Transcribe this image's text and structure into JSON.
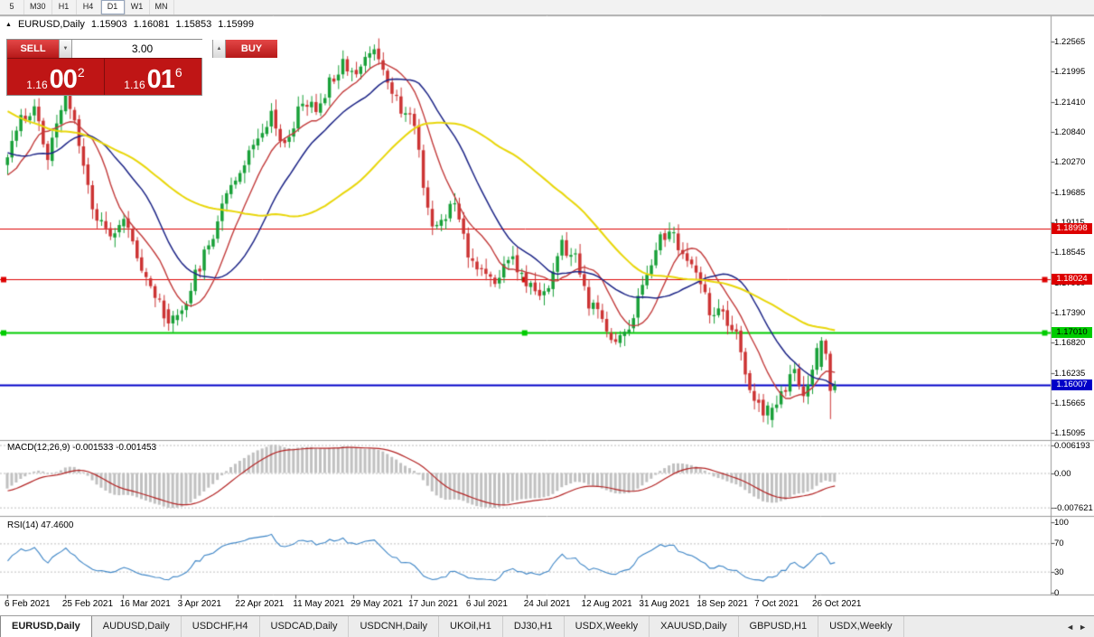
{
  "toolbar": {
    "timeframes": [
      {
        "label": "5",
        "active": false
      },
      {
        "label": "M30",
        "active": false
      },
      {
        "label": "H1",
        "active": false
      },
      {
        "label": "H4",
        "active": false
      },
      {
        "label": "D1",
        "active": true
      },
      {
        "label": "W1",
        "active": false
      },
      {
        "label": "MN",
        "active": false
      }
    ]
  },
  "chart": {
    "symbol_period": "EURUSD,Daily",
    "ohlc": {
      "open": "1.15903",
      "high": "1.16081",
      "low": "1.15853",
      "close": "1.15999"
    }
  },
  "trade_panel": {
    "sell_label": "SELL",
    "buy_label": "BUY",
    "volume": "3.00",
    "sell_price": {
      "big_prefix": "1.16",
      "big": "00",
      "sup": "2"
    },
    "buy_price": {
      "big_prefix": "1.16",
      "big": "01",
      "sup": "6"
    }
  },
  "price_axis": {
    "labels": [
      "1.22565",
      "1.21995",
      "1.21410",
      "1.20840",
      "1.20270",
      "1.19685",
      "1.19115",
      "1.18545",
      "1.17960",
      "1.17390",
      "1.16820",
      "1.16235",
      "1.15665",
      "1.15095"
    ]
  },
  "hlines": [
    {
      "price": 1.18998,
      "label": "1.18998",
      "color": "#dd0000",
      "text": "#ffffff",
      "width": 1,
      "selected": false
    },
    {
      "price": 1.18024,
      "label": "1.18024",
      "color": "#dd0000",
      "text": "#ffffff",
      "width": 1,
      "selected": true
    },
    {
      "price": 1.1701,
      "label": "1.17010",
      "color": "#00cc00",
      "text": "#000000",
      "width": 2,
      "selected": true
    },
    {
      "price": 1.16007,
      "label": "1.16007",
      "color": "#0000c8",
      "text": "#ffffff",
      "width": 2,
      "selected": false
    }
  ],
  "macd": {
    "label": "MACD(12,26,9) -0.001533 -0.001453",
    "axis": [
      "0.006193",
      "0.00",
      "-0.007621"
    ],
    "params": {
      "fast": 12,
      "slow": 26,
      "signal": 9
    }
  },
  "rsi": {
    "label": "RSI(14) 47.4600",
    "axis": [
      "100",
      "70",
      "30",
      "0"
    ],
    "period": 14
  },
  "date_axis": [
    "6 Feb 2021",
    "25 Feb 2021",
    "16 Mar 2021",
    "3 Apr 2021",
    "22 Apr 2021",
    "11 May 2021",
    "29 May 2021",
    "17 Jun 2021",
    "6 Jul 2021",
    "24 Jul 2021",
    "12 Aug 2021",
    "31 Aug 2021",
    "18 Sep 2021",
    "7 Oct 2021",
    "26 Oct 2021"
  ],
  "tabs": [
    {
      "label": "EURUSD,Daily",
      "active": true
    },
    {
      "label": "AUDUSD,Daily",
      "active": false
    },
    {
      "label": "USDCHF,H4",
      "active": false
    },
    {
      "label": "USDCAD,Daily",
      "active": false
    },
    {
      "label": "USDCNH,Daily",
      "active": false
    },
    {
      "label": "UKOil,H1",
      "active": false
    },
    {
      "label": "DJ30,H1",
      "active": false
    },
    {
      "label": "USDX,Weekly",
      "active": false
    },
    {
      "label": "XAUUSD,Daily",
      "active": false
    },
    {
      "label": "GBPUSD,H1",
      "active": false
    },
    {
      "label": "USDX,Weekly",
      "active": false
    }
  ],
  "tabbar_nav": {
    "left": "◄",
    "right": "►"
  },
  "colors": {
    "bull": "#18a038",
    "bear": "#cc3333",
    "macd_hist": "#c0c0c0",
    "macd_signal": "#b22222",
    "rsi_line": "#3d85c6",
    "grid_dotted": "#bdbdbd",
    "pane_border": "#9a9a9a"
  },
  "series": {
    "count": 186,
    "warmup": 60,
    "seed": 11,
    "anchors": [
      [
        -60,
        1.225
      ],
      [
        -48,
        1.232
      ],
      [
        -38,
        1.218
      ],
      [
        -28,
        1.2105
      ],
      [
        -18,
        1.213
      ],
      [
        -10,
        1.202
      ],
      [
        -4,
        1.1975
      ],
      [
        0,
        1.2045
      ],
      [
        3,
        1.2105
      ],
      [
        6,
        1.2135
      ],
      [
        9,
        1.203
      ],
      [
        13,
        1.216
      ],
      [
        16,
        1.207
      ],
      [
        19,
        1.1935
      ],
      [
        23,
        1.1895
      ],
      [
        26,
        1.1915
      ],
      [
        29,
        1.185
      ],
      [
        33,
        1.177
      ],
      [
        36,
        1.172
      ],
      [
        39,
        1.1745
      ],
      [
        43,
        1.183
      ],
      [
        46,
        1.189
      ],
      [
        49,
        1.1975
      ],
      [
        53,
        1.2025
      ],
      [
        56,
        1.208
      ],
      [
        59,
        1.212
      ],
      [
        62,
        1.2055
      ],
      [
        66,
        1.2145
      ],
      [
        69,
        1.2125
      ],
      [
        72,
        1.218
      ],
      [
        75,
        1.222
      ],
      [
        78,
        1.2195
      ],
      [
        82,
        1.225
      ],
      [
        85,
        1.2185
      ],
      [
        88,
        1.2125
      ],
      [
        91,
        1.2105
      ],
      [
        93,
        1.199
      ],
      [
        95,
        1.1895
      ],
      [
        98,
        1.1925
      ],
      [
        100,
        1.196
      ],
      [
        103,
        1.1855
      ],
      [
        106,
        1.1815
      ],
      [
        109,
        1.179
      ],
      [
        112,
        1.185
      ],
      [
        115,
        1.1805
      ],
      [
        118,
        1.1775
      ],
      [
        121,
        1.179
      ],
      [
        124,
        1.1865
      ],
      [
        127,
        1.184
      ],
      [
        130,
        1.1755
      ],
      [
        133,
        1.1725
      ],
      [
        136,
        1.168
      ],
      [
        139,
        1.1715
      ],
      [
        142,
        1.1785
      ],
      [
        145,
        1.187
      ],
      [
        148,
        1.1895
      ],
      [
        151,
        1.185
      ],
      [
        154,
        1.181
      ],
      [
        157,
        1.1745
      ],
      [
        160,
        1.173
      ],
      [
        163,
        1.169
      ],
      [
        165,
        1.1625
      ],
      [
        167,
        1.157
      ],
      [
        170,
        1.1535
      ],
      [
        173,
        1.158
      ],
      [
        176,
        1.163
      ],
      [
        178,
        1.158
      ],
      [
        180,
        1.1635
      ],
      [
        182,
        1.169
      ],
      [
        183,
        1.166
      ],
      [
        184,
        1.159
      ],
      [
        185,
        1.15999
      ]
    ],
    "overrides": [
      [
        36,
        1.1745,
        1.1756,
        1.1704,
        1.1718
      ],
      [
        37,
        1.1718,
        1.1742,
        1.1701,
        1.1733
      ],
      [
        169,
        1.1572,
        1.1583,
        1.1529,
        1.1542
      ],
      [
        170,
        1.1542,
        1.1568,
        1.1525,
        1.1561
      ],
      [
        182,
        1.1635,
        1.1692,
        1.1628,
        1.1685
      ],
      [
        183,
        1.1685,
        1.1688,
        1.1648,
        1.166
      ],
      [
        184,
        1.166,
        1.1665,
        1.1535,
        1.1589
      ]
    ],
    "last_candle": {
      "open": 1.15903,
      "high": 1.16081,
      "low": 1.15853,
      "close": 1.15999
    },
    "ma": [
      {
        "period": 10,
        "color": "#c23b3b"
      },
      {
        "period": 21,
        "color": "#1c2486"
      },
      {
        "period": 50,
        "color": "#e8d60a"
      }
    ]
  }
}
